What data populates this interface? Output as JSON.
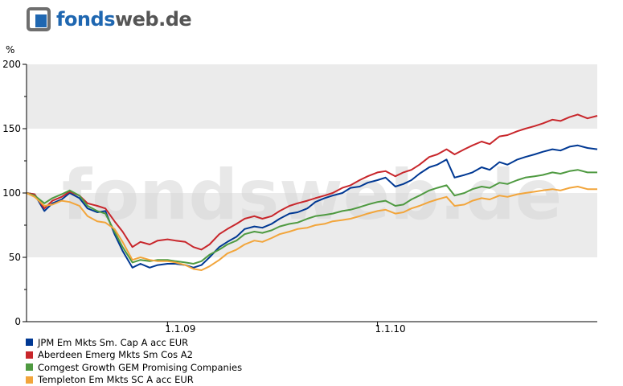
{
  "brand": {
    "name_part1": "fonds",
    "name_part2": "web.de",
    "watermark": "fondsweb.de",
    "colors": {
      "primary": "#1f67b1",
      "secondary": "#555555"
    }
  },
  "chart_data": {
    "type": "line",
    "title": "",
    "xlabel": "",
    "ylabel": "%",
    "ylim": [
      0,
      200
    ],
    "yticks": [
      0,
      50,
      100,
      150,
      200
    ],
    "x_range": [
      "2008-05-01",
      "2011-01-18"
    ],
    "xticks": [
      {
        "date": "2009-01-01",
        "label": "1.1.09"
      },
      {
        "date": "2010-01-01",
        "label": "1.1.10"
      }
    ],
    "grid_bands": true,
    "legend_position": "bottom-left",
    "series": [
      {
        "name": "JPM Em Mkts Sm. Cap A acc EUR",
        "color": "#003893",
        "points": [
          [
            "2008-05-01",
            100
          ],
          [
            "2008-05-15",
            99
          ],
          [
            "2008-06-01",
            86
          ],
          [
            "2008-06-15",
            92
          ],
          [
            "2008-07-01",
            95
          ],
          [
            "2008-07-15",
            100
          ],
          [
            "2008-08-01",
            96
          ],
          [
            "2008-08-15",
            88
          ],
          [
            "2008-09-01",
            85
          ],
          [
            "2008-09-15",
            86
          ],
          [
            "2008-10-01",
            68
          ],
          [
            "2008-10-15",
            55
          ],
          [
            "2008-11-01",
            42
          ],
          [
            "2008-11-15",
            45
          ],
          [
            "2008-12-01",
            42
          ],
          [
            "2008-12-15",
            44
          ],
          [
            "2009-01-01",
            45
          ],
          [
            "2009-01-15",
            45
          ],
          [
            "2009-02-01",
            44
          ],
          [
            "2009-02-15",
            42
          ],
          [
            "2009-03-01",
            44
          ],
          [
            "2009-03-15",
            50
          ],
          [
            "2009-04-01",
            58
          ],
          [
            "2009-04-15",
            62
          ],
          [
            "2009-05-01",
            66
          ],
          [
            "2009-05-15",
            72
          ],
          [
            "2009-06-01",
            74
          ],
          [
            "2009-06-15",
            73
          ],
          [
            "2009-07-01",
            76
          ],
          [
            "2009-07-15",
            80
          ],
          [
            "2009-08-01",
            84
          ],
          [
            "2009-08-15",
            85
          ],
          [
            "2009-09-01",
            88
          ],
          [
            "2009-09-15",
            93
          ],
          [
            "2009-10-01",
            96
          ],
          [
            "2009-10-15",
            98
          ],
          [
            "2009-11-01",
            100
          ],
          [
            "2009-11-15",
            104
          ],
          [
            "2009-12-01",
            105
          ],
          [
            "2009-12-15",
            108
          ],
          [
            "2010-01-01",
            110
          ],
          [
            "2010-01-15",
            112
          ],
          [
            "2010-02-01",
            105
          ],
          [
            "2010-02-15",
            107
          ],
          [
            "2010-03-01",
            110
          ],
          [
            "2010-03-15",
            115
          ],
          [
            "2010-04-01",
            120
          ],
          [
            "2010-04-15",
            122
          ],
          [
            "2010-05-01",
            126
          ],
          [
            "2010-05-15",
            112
          ],
          [
            "2010-06-01",
            114
          ],
          [
            "2010-06-15",
            116
          ],
          [
            "2010-07-01",
            120
          ],
          [
            "2010-07-15",
            118
          ],
          [
            "2010-08-01",
            124
          ],
          [
            "2010-08-15",
            122
          ],
          [
            "2010-09-01",
            126
          ],
          [
            "2010-09-15",
            128
          ],
          [
            "2010-10-01",
            130
          ],
          [
            "2010-10-15",
            132
          ],
          [
            "2010-11-01",
            134
          ],
          [
            "2010-11-15",
            133
          ],
          [
            "2010-12-01",
            136
          ],
          [
            "2010-12-15",
            137
          ],
          [
            "2011-01-01",
            135
          ],
          [
            "2011-01-18",
            134
          ]
        ]
      },
      {
        "name": "Aberdeen Emerg Mkts Sm Cos A2",
        "color": "#c8262b",
        "points": [
          [
            "2008-05-01",
            100
          ],
          [
            "2008-05-15",
            99
          ],
          [
            "2008-06-01",
            88
          ],
          [
            "2008-06-15",
            94
          ],
          [
            "2008-07-01",
            97
          ],
          [
            "2008-07-15",
            101
          ],
          [
            "2008-08-01",
            98
          ],
          [
            "2008-08-15",
            92
          ],
          [
            "2008-09-01",
            90
          ],
          [
            "2008-09-15",
            88
          ],
          [
            "2008-10-01",
            78
          ],
          [
            "2008-10-15",
            70
          ],
          [
            "2008-11-01",
            58
          ],
          [
            "2008-11-15",
            62
          ],
          [
            "2008-12-01",
            60
          ],
          [
            "2008-12-15",
            63
          ],
          [
            "2009-01-01",
            64
          ],
          [
            "2009-01-15",
            63
          ],
          [
            "2009-02-01",
            62
          ],
          [
            "2009-02-15",
            58
          ],
          [
            "2009-03-01",
            56
          ],
          [
            "2009-03-15",
            60
          ],
          [
            "2009-04-01",
            68
          ],
          [
            "2009-04-15",
            72
          ],
          [
            "2009-05-01",
            76
          ],
          [
            "2009-05-15",
            80
          ],
          [
            "2009-06-01",
            82
          ],
          [
            "2009-06-15",
            80
          ],
          [
            "2009-07-01",
            82
          ],
          [
            "2009-07-15",
            86
          ],
          [
            "2009-08-01",
            90
          ],
          [
            "2009-08-15",
            92
          ],
          [
            "2009-09-01",
            94
          ],
          [
            "2009-09-15",
            96
          ],
          [
            "2009-10-01",
            98
          ],
          [
            "2009-10-15",
            100
          ],
          [
            "2009-11-01",
            104
          ],
          [
            "2009-11-15",
            106
          ],
          [
            "2009-12-01",
            110
          ],
          [
            "2009-12-15",
            113
          ],
          [
            "2010-01-01",
            116
          ],
          [
            "2010-01-15",
            117
          ],
          [
            "2010-02-01",
            113
          ],
          [
            "2010-02-15",
            116
          ],
          [
            "2010-03-01",
            118
          ],
          [
            "2010-03-15",
            122
          ],
          [
            "2010-04-01",
            128
          ],
          [
            "2010-04-15",
            130
          ],
          [
            "2010-05-01",
            134
          ],
          [
            "2010-05-15",
            130
          ],
          [
            "2010-06-01",
            134
          ],
          [
            "2010-06-15",
            137
          ],
          [
            "2010-07-01",
            140
          ],
          [
            "2010-07-15",
            138
          ],
          [
            "2010-08-01",
            144
          ],
          [
            "2010-08-15",
            145
          ],
          [
            "2010-09-01",
            148
          ],
          [
            "2010-09-15",
            150
          ],
          [
            "2010-10-01",
            152
          ],
          [
            "2010-10-15",
            154
          ],
          [
            "2010-11-01",
            157
          ],
          [
            "2010-11-15",
            156
          ],
          [
            "2010-12-01",
            159
          ],
          [
            "2010-12-15",
            161
          ],
          [
            "2011-01-01",
            158
          ],
          [
            "2011-01-18",
            160
          ]
        ]
      },
      {
        "name": "Comgest Growth GEM Promising Companies",
        "color": "#4f9a41",
        "points": [
          [
            "2008-05-01",
            100
          ],
          [
            "2008-05-15",
            98
          ],
          [
            "2008-06-01",
            92
          ],
          [
            "2008-06-15",
            96
          ],
          [
            "2008-07-01",
            99
          ],
          [
            "2008-07-15",
            102
          ],
          [
            "2008-08-01",
            98
          ],
          [
            "2008-08-15",
            90
          ],
          [
            "2008-09-01",
            86
          ],
          [
            "2008-09-15",
            84
          ],
          [
            "2008-10-01",
            70
          ],
          [
            "2008-10-15",
            58
          ],
          [
            "2008-11-01",
            46
          ],
          [
            "2008-11-15",
            48
          ],
          [
            "2008-12-01",
            47
          ],
          [
            "2008-12-15",
            48
          ],
          [
            "2009-01-01",
            48
          ],
          [
            "2009-01-15",
            47
          ],
          [
            "2009-02-01",
            46
          ],
          [
            "2009-02-15",
            45
          ],
          [
            "2009-03-01",
            47
          ],
          [
            "2009-03-15",
            52
          ],
          [
            "2009-04-01",
            56
          ],
          [
            "2009-04-15",
            60
          ],
          [
            "2009-05-01",
            63
          ],
          [
            "2009-05-15",
            68
          ],
          [
            "2009-06-01",
            70
          ],
          [
            "2009-06-15",
            69
          ],
          [
            "2009-07-01",
            71
          ],
          [
            "2009-07-15",
            74
          ],
          [
            "2009-08-01",
            76
          ],
          [
            "2009-08-15",
            77
          ],
          [
            "2009-09-01",
            80
          ],
          [
            "2009-09-15",
            82
          ],
          [
            "2009-10-01",
            83
          ],
          [
            "2009-10-15",
            84
          ],
          [
            "2009-11-01",
            86
          ],
          [
            "2009-11-15",
            87
          ],
          [
            "2009-12-01",
            89
          ],
          [
            "2009-12-15",
            91
          ],
          [
            "2010-01-01",
            93
          ],
          [
            "2010-01-15",
            94
          ],
          [
            "2010-02-01",
            90
          ],
          [
            "2010-02-15",
            91
          ],
          [
            "2010-03-01",
            95
          ],
          [
            "2010-03-15",
            98
          ],
          [
            "2010-04-01",
            102
          ],
          [
            "2010-04-15",
            104
          ],
          [
            "2010-05-01",
            106
          ],
          [
            "2010-05-15",
            98
          ],
          [
            "2010-06-01",
            100
          ],
          [
            "2010-06-15",
            103
          ],
          [
            "2010-07-01",
            105
          ],
          [
            "2010-07-15",
            104
          ],
          [
            "2010-08-01",
            108
          ],
          [
            "2010-08-15",
            107
          ],
          [
            "2010-09-01",
            110
          ],
          [
            "2010-09-15",
            112
          ],
          [
            "2010-10-01",
            113
          ],
          [
            "2010-10-15",
            114
          ],
          [
            "2010-11-01",
            116
          ],
          [
            "2010-11-15",
            115
          ],
          [
            "2010-12-01",
            117
          ],
          [
            "2010-12-15",
            118
          ],
          [
            "2011-01-01",
            116
          ],
          [
            "2011-01-18",
            116
          ]
        ]
      },
      {
        "name": "Templeton Em Mkts SC A acc EUR",
        "color": "#f2a53b",
        "points": [
          [
            "2008-05-01",
            100
          ],
          [
            "2008-05-15",
            97
          ],
          [
            "2008-06-01",
            90
          ],
          [
            "2008-06-15",
            91
          ],
          [
            "2008-07-01",
            94
          ],
          [
            "2008-07-15",
            93
          ],
          [
            "2008-08-01",
            90
          ],
          [
            "2008-08-15",
            82
          ],
          [
            "2008-09-01",
            78
          ],
          [
            "2008-09-15",
            77
          ],
          [
            "2008-10-01",
            72
          ],
          [
            "2008-10-15",
            62
          ],
          [
            "2008-11-01",
            48
          ],
          [
            "2008-11-15",
            50
          ],
          [
            "2008-12-01",
            48
          ],
          [
            "2008-12-15",
            47
          ],
          [
            "2009-01-01",
            47
          ],
          [
            "2009-01-15",
            46
          ],
          [
            "2009-02-01",
            44
          ],
          [
            "2009-02-15",
            41
          ],
          [
            "2009-03-01",
            40
          ],
          [
            "2009-03-15",
            43
          ],
          [
            "2009-04-01",
            48
          ],
          [
            "2009-04-15",
            53
          ],
          [
            "2009-05-01",
            56
          ],
          [
            "2009-05-15",
            60
          ],
          [
            "2009-06-01",
            63
          ],
          [
            "2009-06-15",
            62
          ],
          [
            "2009-07-01",
            65
          ],
          [
            "2009-07-15",
            68
          ],
          [
            "2009-08-01",
            70
          ],
          [
            "2009-08-15",
            72
          ],
          [
            "2009-09-01",
            73
          ],
          [
            "2009-09-15",
            75
          ],
          [
            "2009-10-01",
            76
          ],
          [
            "2009-10-15",
            78
          ],
          [
            "2009-11-01",
            79
          ],
          [
            "2009-11-15",
            80
          ],
          [
            "2009-12-01",
            82
          ],
          [
            "2009-12-15",
            84
          ],
          [
            "2010-01-01",
            86
          ],
          [
            "2010-01-15",
            87
          ],
          [
            "2010-02-01",
            84
          ],
          [
            "2010-02-15",
            85
          ],
          [
            "2010-03-01",
            88
          ],
          [
            "2010-03-15",
            90
          ],
          [
            "2010-04-01",
            93
          ],
          [
            "2010-04-15",
            95
          ],
          [
            "2010-05-01",
            97
          ],
          [
            "2010-05-15",
            90
          ],
          [
            "2010-06-01",
            91
          ],
          [
            "2010-06-15",
            94
          ],
          [
            "2010-07-01",
            96
          ],
          [
            "2010-07-15",
            95
          ],
          [
            "2010-08-01",
            98
          ],
          [
            "2010-08-15",
            97
          ],
          [
            "2010-09-01",
            99
          ],
          [
            "2010-09-15",
            100
          ],
          [
            "2010-10-01",
            101
          ],
          [
            "2010-10-15",
            102
          ],
          [
            "2010-11-01",
            103
          ],
          [
            "2010-11-15",
            102
          ],
          [
            "2010-12-01",
            104
          ],
          [
            "2010-12-15",
            105
          ],
          [
            "2011-01-01",
            103
          ],
          [
            "2011-01-18",
            103
          ]
        ]
      }
    ]
  }
}
